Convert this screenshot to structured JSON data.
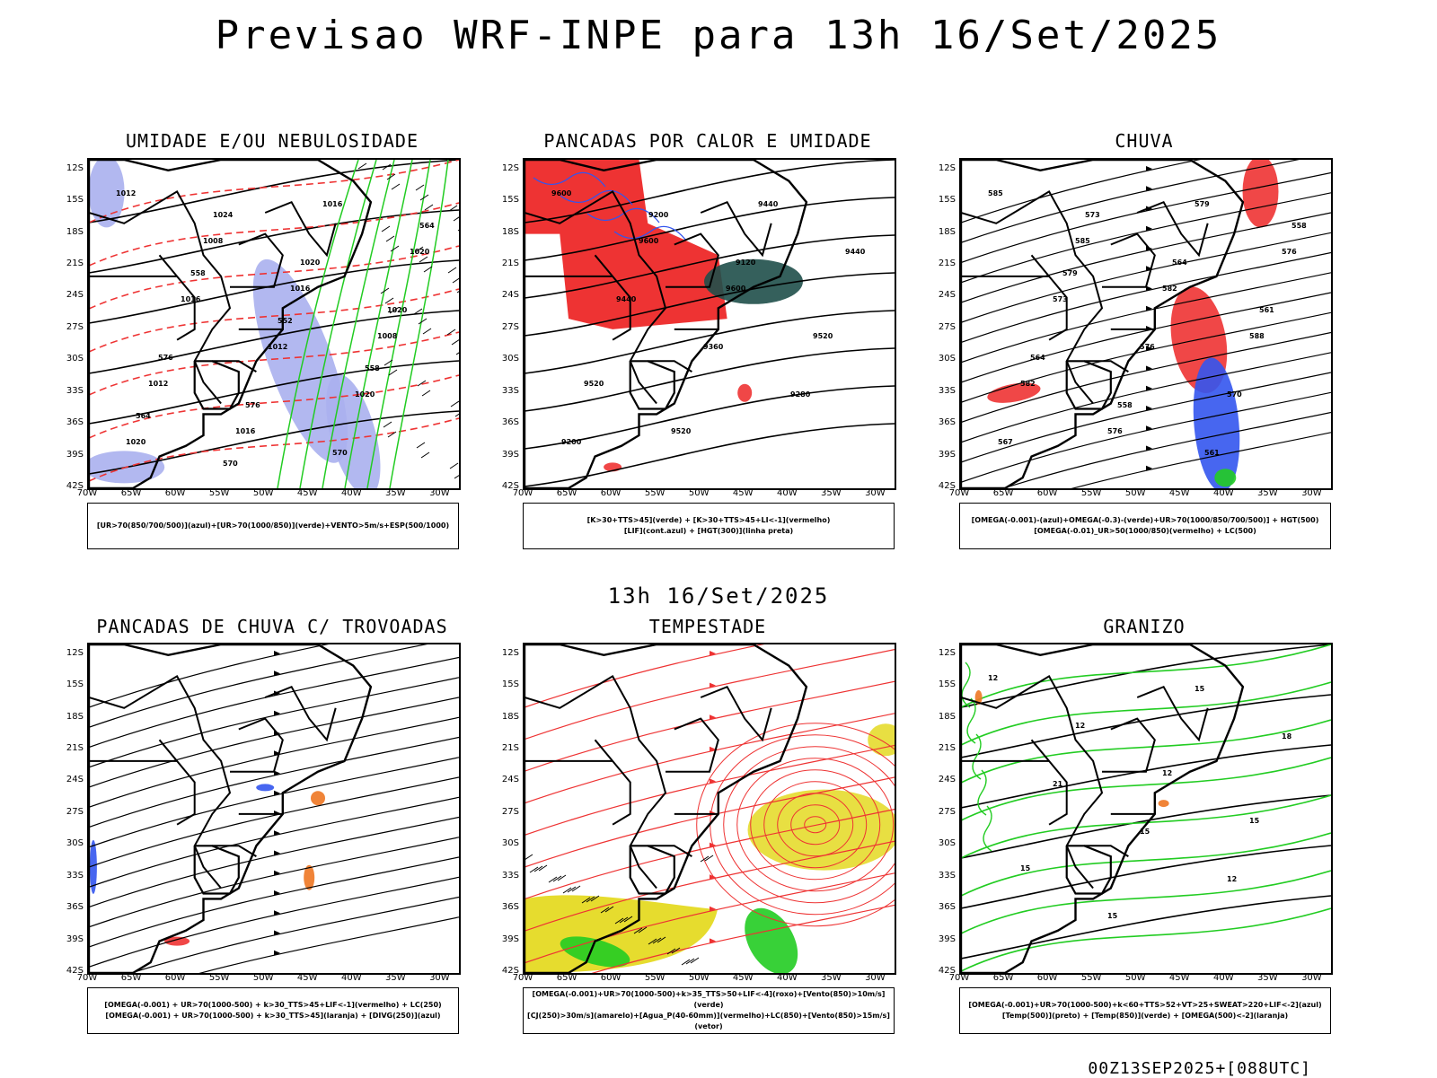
{
  "header": {
    "title": "Previsao WRF-INPE  para 13h 16/Set/2025",
    "mid_title": "13h 16/Set/2025",
    "footer": "00Z13SEP2025+[088UTC]"
  },
  "axes": {
    "lat_labels": [
      "12S",
      "15S",
      "18S",
      "21S",
      "24S",
      "27S",
      "30S",
      "33S",
      "36S",
      "39S",
      "42S"
    ],
    "lon_labels": [
      "70W",
      "65W",
      "60W",
      "55W",
      "50W",
      "45W",
      "40W",
      "35W",
      "30W"
    ]
  },
  "colors": {
    "red": "#ee3333",
    "blue": "#3355ee",
    "green": "#22cc22",
    "lavender": "#aab0ee",
    "darkgreen": "#1f4f4a",
    "yellow": "#e6dc2e",
    "orange": "#ee7722",
    "black": "#000000"
  },
  "panels": [
    {
      "id": "umidade",
      "title": "UMIDADE E/OU NEBULOSIDADE",
      "legend": [
        "[UR>70(850/700/500)](azul)+[UR>70(1000/850)](verde)+VENTO>5m/s+ESP(500/1000)"
      ],
      "labels": [
        "1012",
        "1008",
        "1016",
        "1008",
        "1012",
        "1016",
        "1016",
        "1020",
        "1016",
        "1012",
        "1020",
        "1020",
        "1024",
        "1020",
        "1020",
        "576",
        "576",
        "570",
        "564",
        "558",
        "552",
        "558",
        "564",
        "570"
      ]
    },
    {
      "id": "pancadas-calor",
      "title": "PANCADAS POR CALOR E UMIDADE",
      "legend": [
        "[K>30+TTS>45](verde) + [K>30+TTS>45+LI<-1](vermelho)",
        "[LIF](cont.azul) + [HGT(300)](linha preta)"
      ],
      "labels": [
        "9600",
        "9600",
        "9600",
        "9520",
        "9520",
        "9520",
        "9440",
        "9440",
        "9440",
        "9360",
        "9280",
        "9200",
        "9200",
        "9120"
      ]
    },
    {
      "id": "chuva",
      "title": "CHUVA",
      "legend": [
        "[OMEGA(-0.001)-(azul)+OMEGA(-0.3)-(verde)+UR>70(1000/850/700/500)] + HGT(500)",
        "[OMEGA(-0.01)_UR>50(1000/850)(vermelho) + LC(500)"
      ],
      "labels": [
        "585",
        "585",
        "582",
        "588",
        "582",
        "576",
        "579",
        "576",
        "573",
        "576",
        "570",
        "567",
        "573",
        "564",
        "561",
        "564",
        "558",
        "561",
        "558",
        "579"
      ]
    },
    {
      "id": "trovoadas",
      "title": "PANCADAS DE CHUVA C/ TROVOADAS",
      "legend": [
        "[OMEGA(-0.001) + UR>70(1000-500) + k>30_TTS>45+LIF<-1](vermelho) + LC(250)",
        "[OMEGA(-0.001) + UR>70(1000-500) + k>30_TTS>45](laranja) + [DIVG(250)](azul)"
      ],
      "labels": []
    },
    {
      "id": "tempestade",
      "title": "TEMPESTADE",
      "legend": [
        "[OMEGA(-0.001)+UR>70(1000-500)+k>35_TTS>50+LIF<-4](roxo)+[Vento(850)>10m/s](verde)",
        "[CJ(250)>30m/s](amarelo)+[Agua_P(40-60mm)](vermelho)+LC(850)+[Vento(850)>15m/s](vetor)"
      ],
      "labels": []
    },
    {
      "id": "granizo",
      "title": "GRANIZO",
      "legend": [
        "[OMEGA(-0.001)+UR>70(1000-500)+k<60+TTS>52+VT>25+SWEAT>220+LIF<-2](azul)",
        "[Temp(500)](preto) + [Temp(850)](verde) + [OMEGA(500)<-2](laranja)"
      ],
      "labels": [
        "12",
        "12",
        "12",
        "15",
        "15",
        "15",
        "15",
        "18",
        "21",
        "15",
        "12"
      ]
    }
  ]
}
